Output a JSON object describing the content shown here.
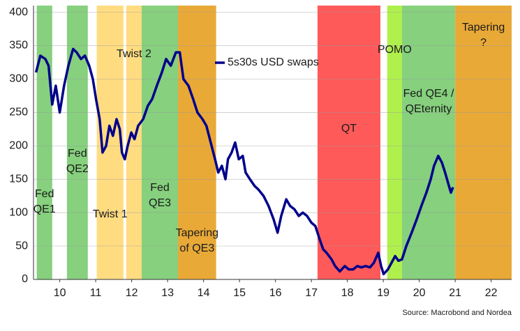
{
  "chart_data": {
    "type": "line",
    "xlim": [
      2009.77,
      2023.07
    ],
    "ylim": [
      0,
      410
    ],
    "yticks": [
      0,
      50,
      100,
      150,
      200,
      250,
      300,
      350,
      400
    ],
    "xticks": [
      {
        "value": 2010.5,
        "label": "10"
      },
      {
        "value": 2011.5,
        "label": "11"
      },
      {
        "value": 2012.5,
        "label": "12"
      },
      {
        "value": 2013.5,
        "label": "13"
      },
      {
        "value": 2014.5,
        "label": "14"
      },
      {
        "value": 2015.5,
        "label": "15"
      },
      {
        "value": 2016.5,
        "label": "16"
      },
      {
        "value": 2017.5,
        "label": "17"
      },
      {
        "value": 2018.5,
        "label": "18"
      },
      {
        "value": 2019.5,
        "label": "19"
      },
      {
        "value": 2020.5,
        "label": "20"
      },
      {
        "value": 2021.5,
        "label": "21"
      },
      {
        "value": 2022.5,
        "label": "22"
      }
    ],
    "grid": true,
    "bands": [
      {
        "label": [
          "Fed",
          "QE1"
        ],
        "start": 2009.86,
        "end": 2010.29,
        "color": "#86d07e"
      },
      {
        "label": [
          "Fed",
          "QE2"
        ],
        "start": 2010.7,
        "end": 2011.28,
        "color": "#86d07e"
      },
      {
        "label": [
          "Twist 1"
        ],
        "start": 2011.53,
        "end": 2012.27,
        "color": "#ffdc80"
      },
      {
        "label": [
          "Twist 2"
        ],
        "start": 2012.35,
        "end": 2012.78,
        "color": "#ffdc80"
      },
      {
        "label": [
          "Fed",
          "QE3"
        ],
        "start": 2012.78,
        "end": 2013.79,
        "color": "#86d07e"
      },
      {
        "label": [
          "Tapering",
          "of QE3"
        ],
        "start": 2013.79,
        "end": 2014.85,
        "color": "#e9a937"
      },
      {
        "label": [
          "QT"
        ],
        "start": 2017.67,
        "end": 2019.42,
        "color": "#ff5a5a"
      },
      {
        "label": [
          "POMO"
        ],
        "start": 2019.61,
        "end": 2020.02,
        "color": "#b0f04c"
      },
      {
        "label": [
          "Fed QE4 /",
          "QEternity"
        ],
        "start": 2020.02,
        "end": 2021.5,
        "color": "#86d07e"
      },
      {
        "label": [
          "Tapering",
          "?"
        ],
        "start": 2021.5,
        "end": 2023.07,
        "color": "#e9a937"
      }
    ],
    "x": [
      2009.84,
      2009.96,
      2010.1,
      2010.19,
      2010.29,
      2010.39,
      2010.5,
      2010.62,
      2010.74,
      2010.87,
      2010.97,
      2011.09,
      2011.2,
      2011.32,
      2011.42,
      2011.51,
      2011.61,
      2011.69,
      2011.79,
      2011.88,
      2011.98,
      2012.08,
      2012.17,
      2012.23,
      2012.31,
      2012.39,
      2012.49,
      2012.58,
      2012.68,
      2012.82,
      2012.95,
      2013.07,
      2013.2,
      2013.34,
      2013.46,
      2013.59,
      2013.73,
      2013.84,
      2013.94,
      2014.08,
      2014.21,
      2014.33,
      2014.47,
      2014.58,
      2014.7,
      2014.82,
      2014.91,
      2015.01,
      2015.11,
      2015.18,
      2015.28,
      2015.38,
      2015.48,
      2015.59,
      2015.67,
      2015.79,
      2015.92,
      2016.02,
      2016.17,
      2016.31,
      2016.45,
      2016.56,
      2016.66,
      2016.8,
      2016.91,
      2017.03,
      2017.15,
      2017.26,
      2017.38,
      2017.5,
      2017.61,
      2017.73,
      2017.83,
      2017.92,
      2018.06,
      2018.16,
      2018.29,
      2018.43,
      2018.54,
      2018.66,
      2018.78,
      2018.89,
      2019.01,
      2019.13,
      2019.24,
      2019.36,
      2019.44,
      2019.51,
      2019.63,
      2019.73,
      2019.83,
      2019.92,
      2020.02,
      2020.14,
      2020.29,
      2020.43,
      2020.56,
      2020.7,
      2020.82,
      2020.91,
      2021.03,
      2021.13,
      2021.22,
      2021.3,
      2021.38,
      2021.44
    ],
    "series": [
      {
        "name": "5s30s USD swaps",
        "color": "#00008b",
        "values": [
          310,
          335,
          330,
          320,
          262,
          290,
          250,
          290,
          320,
          345,
          340,
          330,
          335,
          320,
          300,
          270,
          240,
          190,
          200,
          230,
          215,
          240,
          225,
          190,
          180,
          200,
          220,
          210,
          230,
          240,
          260,
          270,
          290,
          310,
          330,
          320,
          340,
          340,
          300,
          290,
          270,
          250,
          240,
          230,
          205,
          180,
          160,
          170,
          150,
          180,
          190,
          205,
          180,
          185,
          160,
          150,
          140,
          135,
          125,
          110,
          90,
          70,
          95,
          120,
          110,
          105,
          95,
          100,
          95,
          85,
          80,
          60,
          45,
          40,
          30,
          20,
          12,
          20,
          15,
          15,
          20,
          18,
          20,
          18,
          25,
          40,
          20,
          8,
          15,
          25,
          35,
          28,
          30,
          50,
          70,
          90,
          110,
          130,
          150,
          170,
          185,
          175,
          160,
          145,
          130,
          138
        ]
      }
    ],
    "source": "Source: Macrobond and Nordea"
  }
}
